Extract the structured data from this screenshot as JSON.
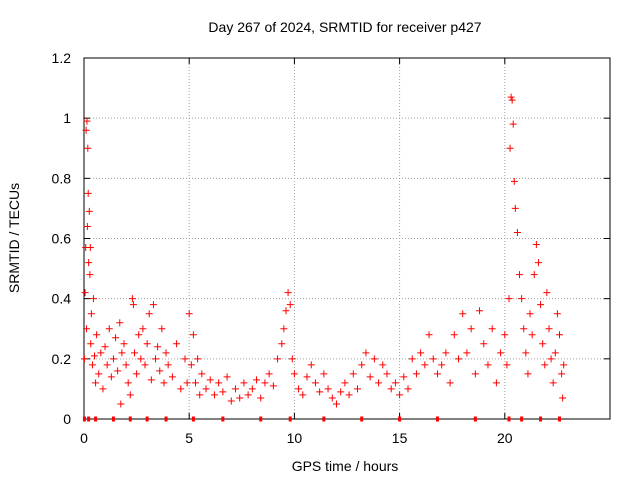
{
  "chart_data": {
    "type": "scatter",
    "title": "Day 267 of 2024, SRMTID for receiver p427",
    "xlabel": "GPS time / hours",
    "ylabel": "SRMTID / TECUs",
    "xlim": [
      0,
      25
    ],
    "ylim": [
      0,
      1.2
    ],
    "x_ticks": [
      0,
      5,
      10,
      15,
      20
    ],
    "x_tick_labels": [
      "0",
      "5",
      "10",
      "15",
      "20"
    ],
    "y_ticks": [
      0,
      0.2,
      0.4,
      0.6,
      0.8,
      1.0,
      1.2
    ],
    "y_tick_labels": [
      "0",
      "0.2",
      "0.4",
      "0.6",
      "0.8",
      "1",
      "1.2"
    ],
    "grid": true,
    "marker": "plus",
    "color": "#ff0000",
    "series": [
      {
        "name": "SRMTID",
        "points": [
          [
            0.02,
            0.2
          ],
          [
            0.05,
            0.42
          ],
          [
            0.08,
            0.57
          ],
          [
            0.1,
            0.96
          ],
          [
            0.12,
            0.3
          ],
          [
            0.14,
            0.99
          ],
          [
            0.16,
            0.64
          ],
          [
            0.18,
            0.9
          ],
          [
            0.2,
            0.75
          ],
          [
            0.22,
            0.52
          ],
          [
            0.25,
            0.69
          ],
          [
            0.28,
            0.48
          ],
          [
            0.3,
            0.57
          ],
          [
            0.32,
            0.25
          ],
          [
            0.35,
            0.35
          ],
          [
            0.4,
            0.18
          ],
          [
            0.45,
            0.4
          ],
          [
            0.5,
            0.21
          ],
          [
            0.55,
            0.12
          ],
          [
            0.6,
            0.28
          ],
          [
            0.7,
            0.15
          ],
          [
            0.8,
            0.22
          ],
          [
            0.9,
            0.1
          ],
          [
            1.0,
            0.24
          ],
          [
            1.1,
            0.18
          ],
          [
            1.2,
            0.3
          ],
          [
            1.3,
            0.14
          ],
          [
            1.4,
            0.2
          ],
          [
            1.5,
            0.27
          ],
          [
            1.6,
            0.16
          ],
          [
            1.7,
            0.32
          ],
          [
            1.75,
            0.05
          ],
          [
            1.8,
            0.22
          ],
          [
            1.9,
            0.25
          ],
          [
            2.0,
            0.18
          ],
          [
            2.1,
            0.12
          ],
          [
            2.2,
            0.08
          ],
          [
            2.3,
            0.4
          ],
          [
            2.35,
            0.38
          ],
          [
            2.4,
            0.22
          ],
          [
            2.5,
            0.15
          ],
          [
            2.6,
            0.28
          ],
          [
            2.7,
            0.2
          ],
          [
            2.8,
            0.3
          ],
          [
            2.9,
            0.18
          ],
          [
            3.0,
            0.25
          ],
          [
            3.1,
            0.35
          ],
          [
            3.2,
            0.13
          ],
          [
            3.3,
            0.38
          ],
          [
            3.4,
            0.2
          ],
          [
            3.5,
            0.24
          ],
          [
            3.6,
            0.16
          ],
          [
            3.7,
            0.3
          ],
          [
            3.8,
            0.12
          ],
          [
            3.9,
            0.22
          ],
          [
            4.0,
            0.18
          ],
          [
            4.2,
            0.14
          ],
          [
            4.4,
            0.25
          ],
          [
            4.6,
            0.1
          ],
          [
            4.8,
            0.2
          ],
          [
            4.9,
            0.12
          ],
          [
            5.0,
            0.35
          ],
          [
            5.1,
            0.18
          ],
          [
            5.2,
            0.28
          ],
          [
            5.3,
            0.12
          ],
          [
            5.4,
            0.2
          ],
          [
            5.5,
            0.08
          ],
          [
            5.6,
            0.15
          ],
          [
            5.8,
            0.1
          ],
          [
            6.0,
            0.13
          ],
          [
            6.2,
            0.08
          ],
          [
            6.4,
            0.12
          ],
          [
            6.6,
            0.09
          ],
          [
            6.8,
            0.14
          ],
          [
            7.0,
            0.06
          ],
          [
            7.2,
            0.1
          ],
          [
            7.4,
            0.07
          ],
          [
            7.6,
            0.12
          ],
          [
            7.8,
            0.08
          ],
          [
            8.0,
            0.1
          ],
          [
            8.2,
            0.13
          ],
          [
            8.4,
            0.07
          ],
          [
            8.6,
            0.12
          ],
          [
            8.8,
            0.15
          ],
          [
            9.0,
            0.11
          ],
          [
            9.2,
            0.2
          ],
          [
            9.4,
            0.25
          ],
          [
            9.5,
            0.3
          ],
          [
            9.6,
            0.36
          ],
          [
            9.7,
            0.42
          ],
          [
            9.8,
            0.38
          ],
          [
            9.9,
            0.2
          ],
          [
            10.0,
            0.15
          ],
          [
            10.2,
            0.1
          ],
          [
            10.4,
            0.08
          ],
          [
            10.6,
            0.14
          ],
          [
            10.8,
            0.18
          ],
          [
            11.0,
            0.12
          ],
          [
            11.2,
            0.09
          ],
          [
            11.4,
            0.15
          ],
          [
            11.6,
            0.1
          ],
          [
            11.8,
            0.07
          ],
          [
            12.0,
            0.05
          ],
          [
            12.2,
            0.09
          ],
          [
            12.4,
            0.12
          ],
          [
            12.6,
            0.08
          ],
          [
            12.8,
            0.15
          ],
          [
            13.0,
            0.1
          ],
          [
            13.2,
            0.18
          ],
          [
            13.4,
            0.22
          ],
          [
            13.6,
            0.14
          ],
          [
            13.8,
            0.2
          ],
          [
            14.0,
            0.12
          ],
          [
            14.2,
            0.18
          ],
          [
            14.4,
            0.15
          ],
          [
            14.6,
            0.1
          ],
          [
            14.8,
            0.12
          ],
          [
            15.0,
            0.08
          ],
          [
            15.2,
            0.14
          ],
          [
            15.4,
            0.1
          ],
          [
            15.6,
            0.2
          ],
          [
            15.8,
            0.15
          ],
          [
            16.0,
            0.22
          ],
          [
            16.2,
            0.18
          ],
          [
            16.4,
            0.28
          ],
          [
            16.6,
            0.2
          ],
          [
            16.8,
            0.15
          ],
          [
            17.0,
            0.18
          ],
          [
            17.2,
            0.22
          ],
          [
            17.4,
            0.12
          ],
          [
            17.6,
            0.28
          ],
          [
            17.8,
            0.2
          ],
          [
            18.0,
            0.35
          ],
          [
            18.2,
            0.22
          ],
          [
            18.4,
            0.3
          ],
          [
            18.6,
            0.15
          ],
          [
            18.8,
            0.36
          ],
          [
            19.0,
            0.25
          ],
          [
            19.2,
            0.18
          ],
          [
            19.4,
            0.3
          ],
          [
            19.6,
            0.12
          ],
          [
            19.8,
            0.22
          ],
          [
            20.0,
            0.28
          ],
          [
            20.1,
            0.18
          ],
          [
            20.2,
            0.4
          ],
          [
            20.25,
            0.9
          ],
          [
            20.3,
            1.07
          ],
          [
            20.35,
            1.06
          ],
          [
            20.4,
            0.98
          ],
          [
            20.45,
            0.79
          ],
          [
            20.5,
            0.7
          ],
          [
            20.6,
            0.62
          ],
          [
            20.7,
            0.48
          ],
          [
            20.8,
            0.4
          ],
          [
            20.9,
            0.3
          ],
          [
            21.0,
            0.22
          ],
          [
            21.1,
            0.15
          ],
          [
            21.2,
            0.35
          ],
          [
            21.3,
            0.28
          ],
          [
            21.4,
            0.48
          ],
          [
            21.5,
            0.58
          ],
          [
            21.6,
            0.52
          ],
          [
            21.7,
            0.38
          ],
          [
            21.8,
            0.25
          ],
          [
            21.9,
            0.18
          ],
          [
            22.0,
            0.42
          ],
          [
            22.1,
            0.3
          ],
          [
            22.2,
            0.2
          ],
          [
            22.3,
            0.12
          ],
          [
            22.4,
            0.22
          ],
          [
            22.5,
            0.35
          ],
          [
            22.6,
            0.28
          ],
          [
            22.7,
            0.15
          ],
          [
            22.75,
            0.07
          ],
          [
            22.8,
            0.18
          ]
        ]
      }
    ]
  }
}
